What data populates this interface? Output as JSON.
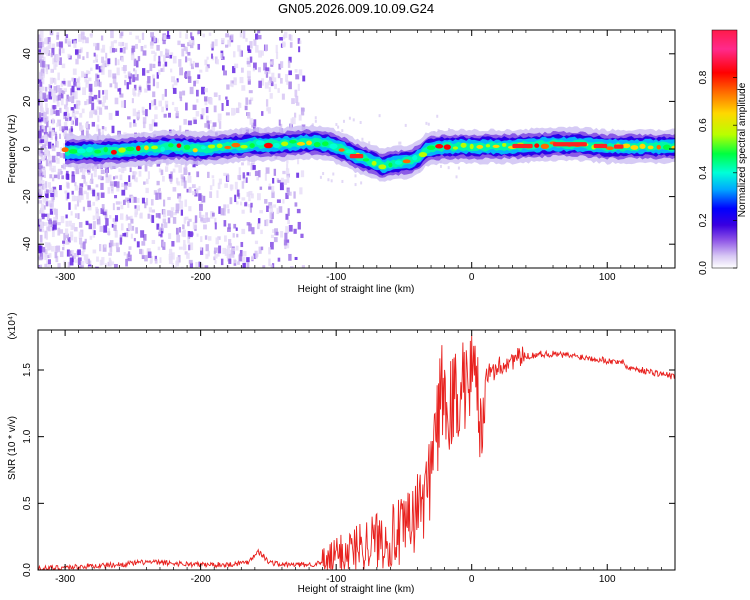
{
  "figure": {
    "title": "GN05.2026.009.10.09.G24"
  },
  "chart_data": [
    {
      "type": "heatmap",
      "title": "GN05.2026.009.10.09.G24",
      "xlabel": "Height of straight line (km)",
      "ylabel": "Frequency (Hz)",
      "xlim": [
        -320,
        150
      ],
      "ylim": [
        -50,
        50
      ],
      "xticks": [
        -300,
        -200,
        -100,
        0,
        100
      ],
      "yticks": [
        -40,
        -20,
        0,
        20,
        40
      ],
      "colorbar": {
        "label": "Normalized spectral amplitude",
        "range": [
          0,
          1
        ],
        "ticks": [
          0.0,
          0.2,
          0.4,
          0.6,
          0.8
        ],
        "colors": [
          "#ffffff",
          "#d8c8f4",
          "#8a4fe6",
          "#3a00e0",
          "#0000ff",
          "#00a8ff",
          "#00ffd8",
          "#00ff40",
          "#b8ff00",
          "#ffd800",
          "#ff6a00",
          "#ff0000",
          "#ff2a8c",
          "#ff1a4a"
        ]
      },
      "ridge": {
        "x": [
          -300,
          -280,
          -260,
          -240,
          -220,
          -200,
          -180,
          -160,
          -140,
          -120,
          -105,
          -95,
          -85,
          -75,
          -65,
          -55,
          -45,
          -38,
          -33,
          -20,
          0,
          30,
          60,
          80,
          100,
          120,
          150
        ],
        "freq": [
          -1,
          -1,
          -1,
          0,
          1,
          0,
          1,
          2,
          2,
          3,
          2,
          0,
          -3,
          -5,
          -7,
          -6,
          -5,
          -3,
          0,
          1,
          1,
          1,
          2,
          2,
          1,
          1,
          1
        ]
      }
    },
    {
      "type": "line",
      "xlabel": "Height of straight line (km)",
      "ylabel": "SNR (10 * v/v)",
      "multiplier_label": "(x10⁴)",
      "xlim": [
        -320,
        150
      ],
      "ylim": [
        0,
        1.8
      ],
      "xticks": [
        -300,
        -200,
        -100,
        0,
        100
      ],
      "yticks": [
        0.0,
        0.5,
        1.0,
        1.5
      ],
      "series": [
        {
          "color": "#e8211e",
          "x": [
            -320,
            -300,
            -280,
            -260,
            -240,
            -220,
            -200,
            -180,
            -165,
            -158,
            -155,
            -150,
            -140,
            -120,
            -105,
            -100,
            -90,
            -80,
            -70,
            -60,
            -50,
            -45,
            -40,
            -35,
            -30,
            -27,
            -25,
            -22,
            -20,
            -15,
            -10,
            0,
            10,
            20,
            30,
            40,
            50,
            60,
            80,
            95,
            105,
            110,
            115,
            125,
            140,
            150
          ],
          "y": [
            0.01,
            0.02,
            0.03,
            0.04,
            0.06,
            0.05,
            0.04,
            0.04,
            0.06,
            0.14,
            0.12,
            0.06,
            0.04,
            0.04,
            0.06,
            0.12,
            0.15,
            0.2,
            0.23,
            0.25,
            0.28,
            0.35,
            0.45,
            0.55,
            0.7,
            0.95,
            0.9,
            1.2,
            1.0,
            1.1,
            1.18,
            1.3,
            1.45,
            1.52,
            1.58,
            1.6,
            1.62,
            1.62,
            1.6,
            1.58,
            1.56,
            1.57,
            1.52,
            1.5,
            1.47,
            1.45
          ]
        }
      ]
    }
  ]
}
